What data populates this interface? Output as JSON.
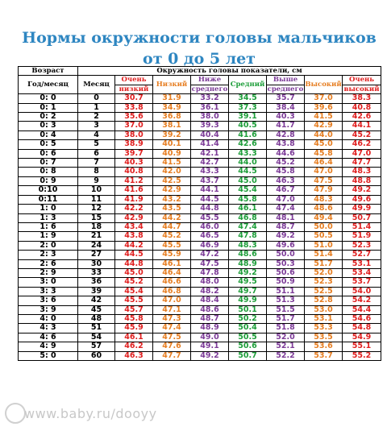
{
  "title_line1": "Нормы окружности головы мальчиков",
  "title_line2": "от 0 до 5 лет",
  "headers": {
    "age": "Возраст",
    "group": "Окружность головы показатели, см",
    "year_month": "Год/месяц",
    "month": "Месяц",
    "very_low_1": "Очень",
    "very_low_2": "низкий",
    "low": "Низкий",
    "below_1": "Ниже",
    "below_2": "среднего",
    "mid": "Средний",
    "above_1": "Выше",
    "above_2": "среднего",
    "high": "Высокий",
    "very_high_1": "Очень",
    "very_high_2": "высокий"
  },
  "colors": {
    "very_low": "#e02020",
    "low": "#e67e22",
    "below": "#7d3c98",
    "mid": "#1e9e3a",
    "above": "#7d3c98",
    "high": "#e67e22",
    "very_high": "#e02020",
    "title": "#2e86c1"
  },
  "rows": [
    [
      "0: 0",
      "0",
      "30.7",
      "31.9",
      "33.2",
      "34.5",
      "35.7",
      "37.0",
      "38.3"
    ],
    [
      "0: 1",
      "1",
      "33.8",
      "34.9",
      "36.1",
      "37.3",
      "38.4",
      "39.6",
      "40.8"
    ],
    [
      "0: 2",
      "2",
      "35.6",
      "36.8",
      "38.0",
      "39.1",
      "40.3",
      "41.5",
      "42.6"
    ],
    [
      "0: 3",
      "3",
      "37.0",
      "38.1",
      "39.3",
      "40.5",
      "41.7",
      "42.9",
      "44.1"
    ],
    [
      "0: 4",
      "4",
      "38.0",
      "39.2",
      "40.4",
      "41.6",
      "42.8",
      "44.0",
      "45.2"
    ],
    [
      "0: 5",
      "5",
      "38.9",
      "40.1",
      "41.4",
      "42.6",
      "43.8",
      "45.0",
      "46.2"
    ],
    [
      "0: 6",
      "6",
      "39.7",
      "40.9",
      "42.1",
      "43.3",
      "44.6",
      "45.8",
      "47.0"
    ],
    [
      "0: 7",
      "7",
      "40.3",
      "41.5",
      "42.7",
      "44.0",
      "45.2",
      "46.4",
      "47.7"
    ],
    [
      "0: 8",
      "8",
      "40.8",
      "42.0",
      "43.3",
      "44.5",
      "45.8",
      "47.0",
      "48.3"
    ],
    [
      "0: 9",
      "9",
      "41.2",
      "42.5",
      "43.7",
      "45.0",
      "46.3",
      "47.5",
      "48.8"
    ],
    [
      "0:10",
      "10",
      "41.6",
      "42.9",
      "44.1",
      "45.4",
      "46.7",
      "47.9",
      "49.2"
    ],
    [
      "0:11",
      "11",
      "41.9",
      "43.2",
      "44.5",
      "45.8",
      "47.0",
      "48.3",
      "49.6"
    ],
    [
      "1: 0",
      "12",
      "42.2",
      "43.5",
      "44.8",
      "46.1",
      "47.4",
      "48.6",
      "49.9"
    ],
    [
      "1: 3",
      "15",
      "42.9",
      "44.2",
      "45.5",
      "46.8",
      "48.1",
      "49.4",
      "50.7"
    ],
    [
      "1: 6",
      "18",
      "43.4",
      "44.7",
      "46.0",
      "47.4",
      "48.7",
      "50.0",
      "51.4"
    ],
    [
      "1: 9",
      "21",
      "43.8",
      "45.2",
      "46.5",
      "47.8",
      "49.2",
      "50.5",
      "51.9"
    ],
    [
      "2: 0",
      "24",
      "44.2",
      "45.5",
      "46.9",
      "48.3",
      "49.6",
      "51.0",
      "52.3"
    ],
    [
      "2: 3",
      "27",
      "44.5",
      "45.9",
      "47.2",
      "48.6",
      "50.0",
      "51.4",
      "52.7"
    ],
    [
      "2: 6",
      "30",
      "44.8",
      "46.1",
      "47.5",
      "48.9",
      "50.3",
      "51.7",
      "53.1"
    ],
    [
      "2: 9",
      "33",
      "45.0",
      "46.4",
      "47.8",
      "49.2",
      "50.6",
      "52.0",
      "53.4"
    ],
    [
      "3: 0",
      "36",
      "45.2",
      "46.6",
      "48.0",
      "49.5",
      "50.9",
      "52.3",
      "53.7"
    ],
    [
      "3: 3",
      "39",
      "45.4",
      "46.8",
      "48.2",
      "49.7",
      "51.1",
      "52.5",
      "54.0"
    ],
    [
      "3: 6",
      "42",
      "45.5",
      "47.0",
      "48.4",
      "49.9",
      "51.3",
      "52.8",
      "54.2"
    ],
    [
      "3: 9",
      "45",
      "45.7",
      "47.1",
      "48.6",
      "50.1",
      "51.5",
      "53.0",
      "54.4"
    ],
    [
      "4: 0",
      "48",
      "45.8",
      "47.3",
      "48.7",
      "50.2",
      "51.7",
      "53.1",
      "54.6"
    ],
    [
      "4: 3",
      "51",
      "45.9",
      "47.4",
      "48.9",
      "50.4",
      "51.8",
      "53.3",
      "54.8"
    ],
    [
      "4: 6",
      "54",
      "46.1",
      "47.5",
      "49.0",
      "50.5",
      "52.0",
      "53.5",
      "54.9"
    ],
    [
      "4: 9",
      "57",
      "46.2",
      "47.6",
      "49.1",
      "50.6",
      "52.1",
      "53.6",
      "55.1"
    ],
    [
      "5: 0",
      "60",
      "46.3",
      "47.7",
      "49.2",
      "50.7",
      "52.2",
      "53.7",
      "55.2"
    ]
  ],
  "watermark": "www.baby.ru/dooyy"
}
